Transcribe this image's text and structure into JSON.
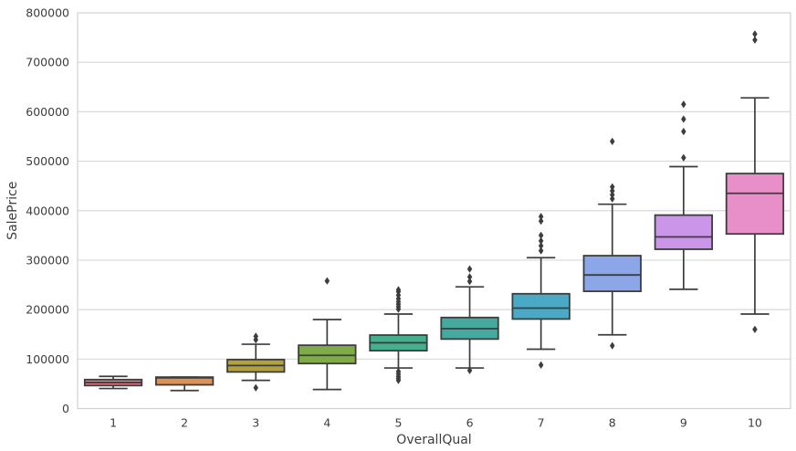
{
  "chart_data": {
    "type": "boxplot",
    "title": "",
    "xlabel": "OverallQual",
    "ylabel": "SalePrice",
    "categories": [
      "1",
      "2",
      "3",
      "4",
      "5",
      "6",
      "7",
      "8",
      "9",
      "10"
    ],
    "ylim": [
      0,
      800000
    ],
    "yticks": [
      0,
      100000,
      200000,
      300000,
      400000,
      500000,
      600000,
      700000,
      800000
    ],
    "grid": true,
    "legend": "none",
    "colors": {
      "box_edge": "#3d3d3d",
      "grid_line": "#d9d9d9",
      "plot_border": "#d0d0d0",
      "text": "#3d3d3d",
      "background": "#ffffff"
    },
    "boxes": [
      {
        "category": "1",
        "color": "#e17a89",
        "whislo": 40500,
        "q1": 46500,
        "med": 52500,
        "q3": 58500,
        "whishi": 65000,
        "fliers": []
      },
      {
        "category": "2",
        "color": "#dc9156",
        "whislo": 36500,
        "q1": 48000,
        "med": 62000,
        "q3": 63500,
        "whishi": 63500,
        "fliers": []
      },
      {
        "category": "3",
        "color": "#b2a13e",
        "whislo": 57000,
        "q1": 74000,
        "med": 87000,
        "q3": 99000,
        "whishi": 130000,
        "fliers": [
          42000,
          139000,
          146000
        ]
      },
      {
        "category": "4",
        "color": "#7fab49",
        "whislo": 38500,
        "q1": 91000,
        "med": 107500,
        "q3": 128000,
        "whishi": 180000,
        "fliers": [
          258000
        ]
      },
      {
        "category": "5",
        "color": "#45ae8d",
        "whislo": 82000,
        "q1": 117000,
        "med": 133000,
        "q3": 148500,
        "whishi": 191000,
        "fliers": [
          57000,
          61000,
          65000,
          70000,
          75000,
          201000,
          206000,
          211000,
          216000,
          222000,
          229000,
          236000,
          240000
        ]
      },
      {
        "category": "6",
        "color": "#46a9a0",
        "whislo": 82000,
        "q1": 140500,
        "med": 161500,
        "q3": 184000,
        "whishi": 246000,
        "fliers": [
          77000,
          257000,
          266000,
          282000
        ]
      },
      {
        "category": "7",
        "color": "#4aa9c4",
        "whislo": 120000,
        "q1": 181000,
        "med": 203000,
        "q3": 232000,
        "whishi": 305000,
        "fliers": [
          88000,
          319000,
          329000,
          339000,
          350000,
          379000,
          388000
        ]
      },
      {
        "category": "8",
        "color": "#8ba7e8",
        "whislo": 149000,
        "q1": 237000,
        "med": 270000,
        "q3": 309000,
        "whishi": 413000,
        "fliers": [
          127000,
          424000,
          432000,
          440000,
          448000,
          540000
        ]
      },
      {
        "category": "9",
        "color": "#cb95ea",
        "whislo": 241000,
        "q1": 322000,
        "med": 347000,
        "q3": 391000,
        "whishi": 489000,
        "fliers": [
          507000,
          560000,
          585000,
          615000
        ]
      },
      {
        "category": "10",
        "color": "#e88ec9",
        "whislo": 191000,
        "q1": 353000,
        "med": 435000,
        "q3": 475000,
        "whishi": 628000,
        "fliers": [
          160000,
          745000,
          757000
        ]
      }
    ]
  }
}
